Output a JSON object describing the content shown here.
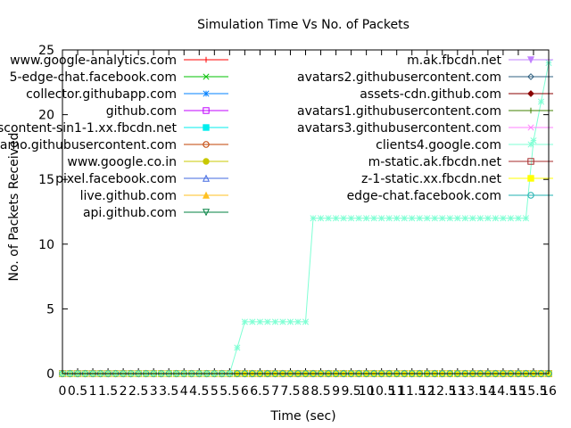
{
  "chart_data": {
    "type": "line",
    "title": "Simulation Time Vs No. of Packets",
    "xlabel": "Time (sec)",
    "ylabel": "No. of Packets Received",
    "xlim": [
      0,
      16
    ],
    "ylim": [
      0,
      25
    ],
    "x_ticks": [
      "0",
      "0.5",
      "1",
      "1.5",
      "2",
      "2.5",
      "3",
      "3.5",
      "4",
      "4.5",
      "5",
      "5.5",
      "6",
      "6.5",
      "7",
      "7.5",
      "8",
      "8.5",
      "9",
      "9.5",
      "10",
      "10.5",
      "11",
      "11.5",
      "12",
      "12.5",
      "13",
      "13.5",
      "14",
      "14.5",
      "15",
      "15.5",
      "16"
    ],
    "y_ticks": [
      "0",
      "5",
      "10",
      "15",
      "20",
      "25"
    ],
    "grid": false,
    "legend_columns": [
      [
        "www.google-analytics.com",
        "5-edge-chat.facebook.com",
        "collector.githubapp.com",
        "github.com",
        "scontent-sin1-1.xx.fbcdn.net",
        "camo.githubusercontent.com",
        "www.google.co.in",
        "pixel.facebook.com",
        "live.github.com",
        "api.github.com"
      ],
      [
        "m.ak.fbcdn.net",
        "avatars2.githubusercontent.com",
        "assets-cdn.github.com",
        "avatars1.githubusercontent.com",
        "avatars3.githubusercontent.com",
        "clients4.google.com",
        "m-static.ak.fbcdn.net",
        "z-1-static.xx.fbcdn.net",
        "edge-chat.facebook.com"
      ]
    ],
    "series": [
      {
        "name": "www.google-analytics.com",
        "color": "#ff0000",
        "marker": "plus",
        "values": [
          [
            0,
            0
          ],
          [
            16,
            0
          ]
        ]
      },
      {
        "name": "5-edge-chat.facebook.com",
        "color": "#00c000",
        "marker": "cross",
        "values": [
          [
            0,
            0
          ],
          [
            16,
            0
          ]
        ]
      },
      {
        "name": "collector.githubapp.com",
        "color": "#0080ff",
        "marker": "star",
        "values": [
          [
            0,
            0
          ],
          [
            16,
            0
          ]
        ]
      },
      {
        "name": "github.com",
        "color": "#c000ff",
        "marker": "box",
        "values": [
          [
            0,
            0
          ],
          [
            16,
            0
          ]
        ]
      },
      {
        "name": "scontent-sin1-1.xx.fbcdn.net",
        "color": "#00eeee",
        "marker": "fbox",
        "values": [
          [
            0,
            0
          ],
          [
            16,
            0
          ]
        ]
      },
      {
        "name": "camo.githubusercontent.com",
        "color": "#c04000",
        "marker": "circle",
        "values": [
          [
            0,
            0
          ],
          [
            16,
            0
          ]
        ]
      },
      {
        "name": "www.google.co.in",
        "color": "#c8c800",
        "marker": "fcircle",
        "values": [
          [
            0,
            0
          ],
          [
            16,
            0
          ]
        ]
      },
      {
        "name": "pixel.facebook.com",
        "color": "#4169e1",
        "marker": "triangle",
        "values": [
          [
            0,
            0
          ],
          [
            16,
            0
          ]
        ]
      },
      {
        "name": "live.github.com",
        "color": "#ffc020",
        "marker": "ftriangle",
        "values": [
          [
            0,
            0
          ],
          [
            16,
            0
          ]
        ]
      },
      {
        "name": "api.github.com",
        "color": "#008040",
        "marker": "itriangle",
        "values": [
          [
            0,
            0
          ],
          [
            16,
            0
          ]
        ]
      },
      {
        "name": "m.ak.fbcdn.net",
        "color": "#c080ff",
        "marker": "fitriangle",
        "values": [
          [
            0,
            0
          ],
          [
            16,
            0
          ]
        ]
      },
      {
        "name": "avatars2.githubusercontent.com",
        "color": "#306080",
        "marker": "diamond",
        "values": [
          [
            0,
            0
          ],
          [
            16,
            0
          ]
        ]
      },
      {
        "name": "assets-cdn.github.com",
        "color": "#8b0000",
        "marker": "fdiamond",
        "values": [
          [
            0,
            0
          ],
          [
            16,
            0
          ]
        ]
      },
      {
        "name": "avatars1.githubusercontent.com",
        "color": "#408000",
        "marker": "plus",
        "values": [
          [
            0,
            0
          ],
          [
            16,
            0
          ]
        ]
      },
      {
        "name": "avatars3.githubusercontent.com",
        "color": "#ff80ff",
        "marker": "cross",
        "values": [
          [
            0,
            0
          ],
          [
            16,
            0
          ]
        ]
      },
      {
        "name": "clients4.google.com",
        "color": "#7fffd4",
        "marker": "star",
        "values": [
          [
            0,
            0
          ],
          [
            5.5,
            0
          ],
          [
            5.75,
            2
          ],
          [
            6,
            4
          ],
          [
            8,
            4
          ],
          [
            8.25,
            12
          ],
          [
            15.25,
            12
          ],
          [
            15.5,
            18
          ],
          [
            16,
            24
          ]
        ]
      },
      {
        "name": "m-static.ak.fbcdn.net",
        "color": "#a52a2a",
        "marker": "box",
        "values": [
          [
            0,
            0
          ],
          [
            16,
            0
          ]
        ]
      },
      {
        "name": "z-1-static.xx.fbcdn.net",
        "color": "#ffff00",
        "marker": "fbox",
        "values": [
          [
            0,
            0
          ],
          [
            16,
            0
          ]
        ]
      },
      {
        "name": "edge-chat.facebook.com",
        "color": "#20b0b0",
        "marker": "circle",
        "values": [
          [
            0,
            0
          ],
          [
            16,
            0
          ]
        ]
      }
    ]
  }
}
